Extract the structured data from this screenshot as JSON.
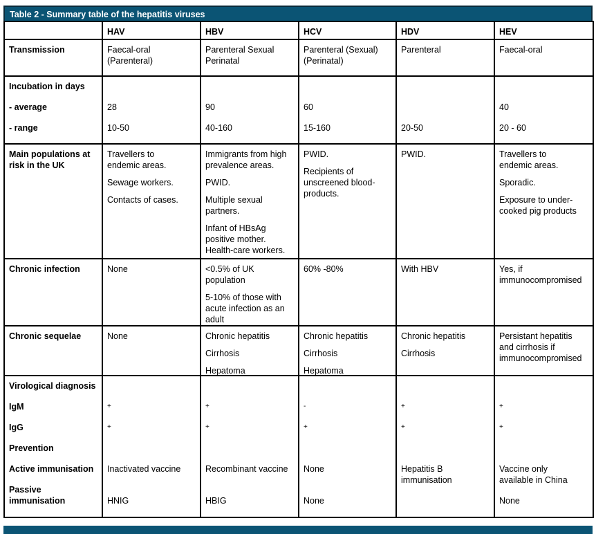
{
  "title": "Table 2 - Summary table of the hepatitis viruses",
  "columns": [
    "",
    "HAV",
    "HBV",
    "HCV",
    "HDV",
    "HEV"
  ],
  "rows": [
    {
      "label": "Transmission",
      "cells": [
        [
          "Faecal-oral\n(Parenteral)"
        ],
        [
          "Parenteral Sexual\nPerinatal"
        ],
        [
          "Parenteral (Sexual)\n(Perinatal)"
        ],
        [
          "Parenteral"
        ],
        [
          "Faecal-oral"
        ]
      ]
    },
    {
      "label": "Incubation in days",
      "group": "inc",
      "cells": [
        [
          ""
        ],
        [
          ""
        ],
        [
          ""
        ],
        [
          ""
        ],
        [
          ""
        ]
      ]
    },
    {
      "label": "- average",
      "group": "inc",
      "cells": [
        [
          "28"
        ],
        [
          "90"
        ],
        [
          "60"
        ],
        [
          ""
        ],
        [
          "40"
        ]
      ]
    },
    {
      "label": "- range",
      "group": "inc",
      "cells": [
        [
          "10-50"
        ],
        [
          "40-160"
        ],
        [
          "15-160"
        ],
        [
          "20-50"
        ],
        [
          "20 - 60"
        ]
      ]
    },
    {
      "label": "",
      "group": "inc",
      "cells": [
        [
          ""
        ],
        [
          ""
        ],
        [
          ""
        ],
        [
          ""
        ],
        [
          ""
        ]
      ]
    },
    {
      "label": "Main populations at\nrisk in the UK",
      "cells": [
        [
          "Travellers to\nendemic areas.",
          "Sewage workers.",
          "Contacts of cases."
        ],
        [
          "Immigrants from high\nprevalence areas.",
          "PWID.",
          "Multiple sexual\npartners.",
          "Infant of HBsAg\npositive mother.\nHealth-care workers."
        ],
        [
          "PWID.",
          "Recipients of\nunscreened blood-\nproducts."
        ],
        [
          "PWID."
        ],
        [
          "Travellers to\nendemic areas.",
          "Sporadic.",
          "Exposure to under-\ncooked pig products"
        ]
      ]
    },
    {
      "label": "Chronic infection",
      "cells": [
        [
          "None"
        ],
        [
          "<0.5% of UK\npopulation",
          "5-10% of those with\nacute infection as an\nadult"
        ],
        [
          "60% -80%"
        ],
        [
          "With HBV"
        ],
        [
          "Yes, if\nimmunocompromised"
        ]
      ]
    },
    {
      "label": "Chronic sequelae",
      "cells": [
        [
          "None"
        ],
        [
          "Chronic hepatitis",
          "Cirrhosis",
          "Hepatoma"
        ],
        [
          "Chronic hepatitis",
          "Cirrhosis",
          "Hepatoma"
        ],
        [
          "Chronic hepatitis",
          "Cirrhosis"
        ],
        [
          "Persistant hepatitis\nand cirrhosis if\nimmunocompromised"
        ]
      ]
    },
    {
      "label": "Virological diagnosis",
      "group": "vir",
      "cells": [
        [
          ""
        ],
        [
          ""
        ],
        [
          ""
        ],
        [
          ""
        ],
        [
          ""
        ]
      ]
    },
    {
      "label": "IgM",
      "group": "vir",
      "cells": [
        [
          "+"
        ],
        [
          "+"
        ],
        [
          "-"
        ],
        [
          "+"
        ],
        [
          "+"
        ]
      ]
    },
    {
      "label": "IgG",
      "group": "vir",
      "cells": [
        [
          "+"
        ],
        [
          "+"
        ],
        [
          "+"
        ],
        [
          "+"
        ],
        [
          "+"
        ]
      ]
    },
    {
      "label": "Prevention",
      "group": "vir",
      "cells": [
        [
          ""
        ],
        [
          ""
        ],
        [
          ""
        ],
        [
          ""
        ],
        [
          ""
        ]
      ]
    },
    {
      "label": "Active immunisation",
      "group": "vir",
      "cells": [
        [
          "Inactivated vaccine"
        ],
        [
          "Recombinant vaccine"
        ],
        [
          "None"
        ],
        [
          "Hepatitis B\nimmunisation"
        ],
        [
          "Vaccine only\navailable in China"
        ]
      ]
    },
    {
      "label": "Passive\nimmunisation",
      "group": "vir",
      "cells": [
        [
          "\nHNIG"
        ],
        [
          "\nHBIG"
        ],
        [
          "\nNone"
        ],
        [
          ""
        ],
        [
          "\nNone"
        ]
      ]
    }
  ],
  "colors": {
    "title_bar": "#0b5474",
    "border": "#000000"
  }
}
